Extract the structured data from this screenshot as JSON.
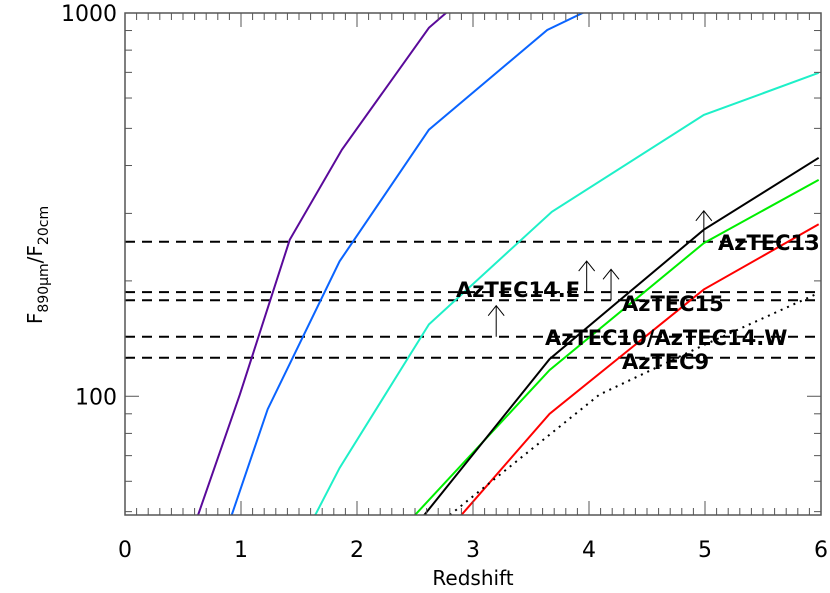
{
  "chart_data": {
    "type": "line",
    "xlabel": "Redshift",
    "ylabel": {
      "main": "F",
      "sub1": "890µm",
      "sep": "/F",
      "sub2": "20cm"
    },
    "xlim": [
      0,
      6
    ],
    "ylim": [
      49,
      1000
    ],
    "yscale": "log",
    "grid": false,
    "x_ticks": [
      "0",
      "1",
      "2",
      "3",
      "4",
      "5",
      "6"
    ],
    "y_ticks": [
      "100",
      "1000"
    ],
    "series": [
      {
        "color": "#5a0a9a",
        "style": "solid",
        "x": [
          0.63,
          0.99,
          1.42,
          1.87,
          2.62,
          2.84
        ],
        "y": [
          49,
          101,
          256,
          440,
          915,
          1045
        ]
      },
      {
        "color": "#0a64ff",
        "style": "solid",
        "x": [
          0.92,
          1.23,
          1.85,
          2.62,
          3.64,
          4.09
        ],
        "y": [
          49,
          92.5,
          225,
          496,
          903,
          1050
        ]
      },
      {
        "color": "#1ef0c8",
        "style": "solid",
        "x": [
          1.64,
          1.85,
          2.62,
          3.68,
          4.99,
          5.98
        ],
        "y": [
          49,
          65,
          154,
          303,
          542,
          698
        ]
      },
      {
        "color": "#00ee00",
        "style": "solid",
        "x": [
          2.5,
          3.66,
          4.99,
          5.98
        ],
        "y": [
          49,
          117,
          251,
          367
        ]
      },
      {
        "color": "#000000",
        "style": "solid",
        "x": [
          2.58,
          3.66,
          4.99,
          5.98
        ],
        "y": [
          49,
          125,
          272,
          419
        ]
      },
      {
        "color": "#ff0000",
        "style": "solid",
        "x": [
          2.9,
          3.66,
          4.99,
          5.98
        ],
        "y": [
          49,
          90,
          190,
          281
        ]
      },
      {
        "color": "#000000",
        "style": "dotted",
        "x": [
          2.8,
          4.09,
          4.99,
          5.98
        ],
        "y": [
          49,
          101,
          136,
          186
        ]
      }
    ],
    "hlines": [
      {
        "label": "AzTEC13",
        "y": 253
      },
      {
        "label": "AzTEC14.E",
        "y": 187
      },
      {
        "label": "AzTEC15",
        "y": 178
      },
      {
        "label": "AzTEC10/AzTEC14.W",
        "y": 143
      },
      {
        "label": "AzTEC9",
        "y": 126
      }
    ],
    "lower_limit_arrows": [
      {
        "x": 4.99,
        "y": 253
      },
      {
        "x": 3.98,
        "y": 187
      },
      {
        "x": 4.19,
        "y": 178
      },
      {
        "x": 3.2,
        "y": 143
      }
    ]
  }
}
